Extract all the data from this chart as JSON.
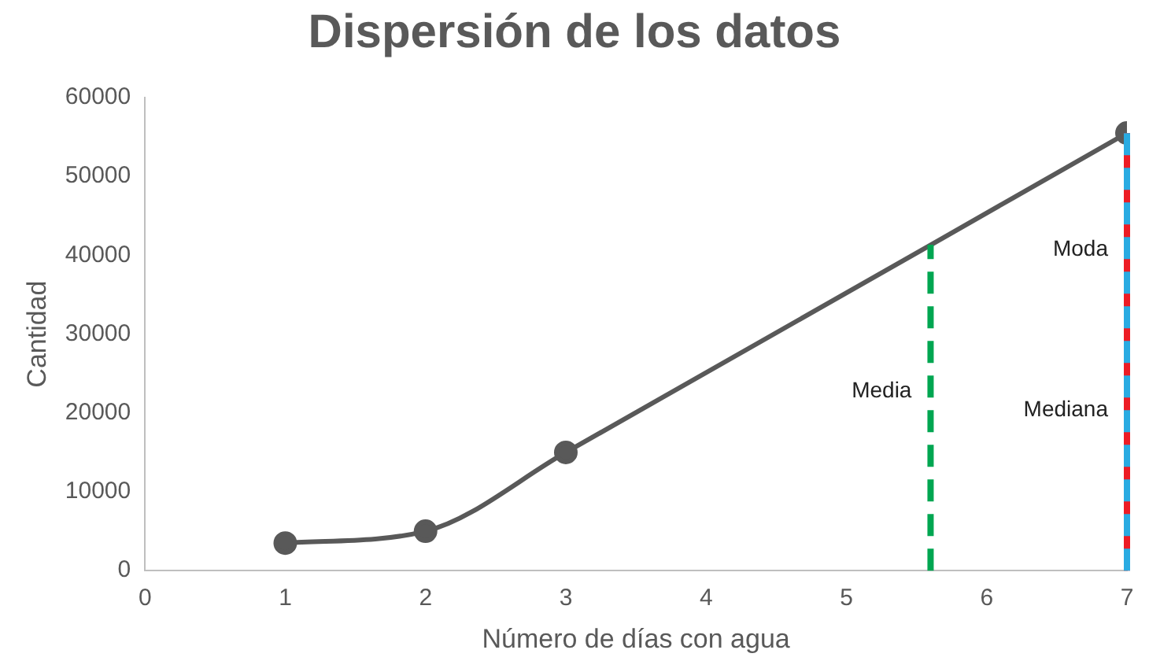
{
  "chart_data": {
    "type": "line",
    "title": "Dispersión de los datos",
    "xlabel": "Número de días con agua",
    "ylabel": "Cantidad",
    "x": [
      1,
      2,
      3,
      7
    ],
    "series": [
      {
        "color": "#595959",
        "values": [
          3500,
          5000,
          15000,
          55500
        ]
      }
    ],
    "xlim": [
      0,
      7
    ],
    "xticks": [
      0,
      1,
      2,
      3,
      4,
      5,
      6,
      7
    ],
    "ylim": [
      0,
      60000
    ],
    "yticks": [
      0,
      10000,
      20000,
      30000,
      40000,
      50000,
      60000
    ],
    "marker": "circle",
    "grid": false,
    "legend": false,
    "ref_lines": [
      {
        "axis": "x",
        "value": 5.6,
        "color": "#00a651",
        "line_style": "dashed",
        "label": "Media"
      },
      {
        "axis": "x",
        "value": 7,
        "color": "#ed1c24",
        "line_style": "dashed",
        "label": "Moda"
      },
      {
        "axis": "x",
        "value": 7,
        "color": "#29abe2",
        "line_style": "dashed",
        "label": "Mediana"
      }
    ]
  }
}
